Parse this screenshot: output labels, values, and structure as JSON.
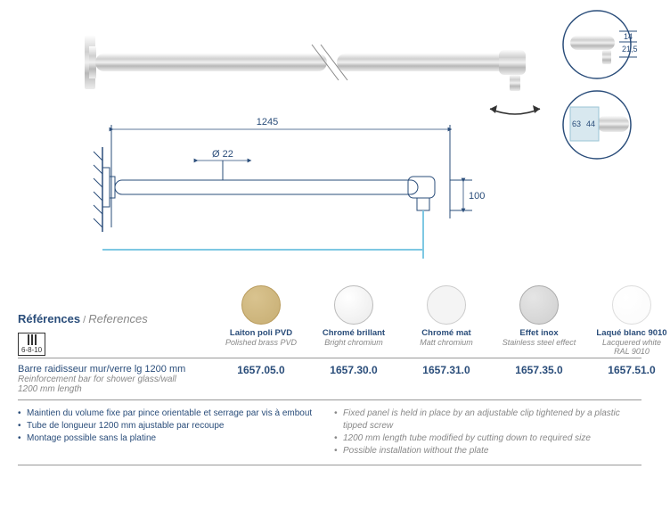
{
  "diagram": {
    "overall_length": "1245",
    "tube_diameter": "Ø 22",
    "glass_offset": "100",
    "detail_top": {
      "a": "14",
      "b": "21,5"
    },
    "detail_side": {
      "a": "63",
      "b": "44"
    }
  },
  "references": {
    "title_fr": "Références",
    "title_en": "References",
    "glass_spec": "6-8-10",
    "finishes": [
      {
        "name_fr": "Laiton poli PVD",
        "name_en": "Polished brass PVD",
        "color": "#d9c38f",
        "grad": "#c7ae73",
        "border": "#b89a5a"
      },
      {
        "name_fr": "Chromé brillant",
        "name_en": "Bright chromium",
        "color": "#ffffff",
        "grad": "#eaeaea",
        "border": "#bbb"
      },
      {
        "name_fr": "Chromé mat",
        "name_en": "Matt chromium",
        "color": "#f4f4f4",
        "grad": "#f4f4f4",
        "border": "#ccc"
      },
      {
        "name_fr": "Effet inox",
        "name_en": "Stainless steel effect",
        "color": "#e5e5e5",
        "grad": "#cfcfcf",
        "border": "#aaa"
      },
      {
        "name_fr": "Laqué blanc 9010",
        "name_en": "Lacquered white RAL 9010",
        "color": "#ffffff",
        "grad": "#fafafa",
        "border": "#ddd"
      }
    ],
    "product": {
      "desc_fr": "Barre raidisseur mur/verre lg 1200 mm",
      "desc_en": "Reinforcement bar for shower glass/wall 1200 mm length",
      "codes": [
        "1657.05.0",
        "1657.30.0",
        "1657.31.0",
        "1657.35.0",
        "1657.51.0"
      ]
    },
    "notes_fr": [
      "Maintien du volume fixe par pince orientable et serrage par vis à embout",
      "Tube de longueur 1200 mm ajustable par recoupe",
      "Montage possible sans la platine"
    ],
    "notes_en": [
      "Fixed panel is held in place by an adjustable clip tightened by a plastic tipped screw",
      "1200 mm length tube modified by cutting down to required size",
      "Possible installation without the plate"
    ]
  },
  "colors": {
    "primary": "#2a4d7a",
    "muted": "#888",
    "glass": "#7ec8e3"
  }
}
